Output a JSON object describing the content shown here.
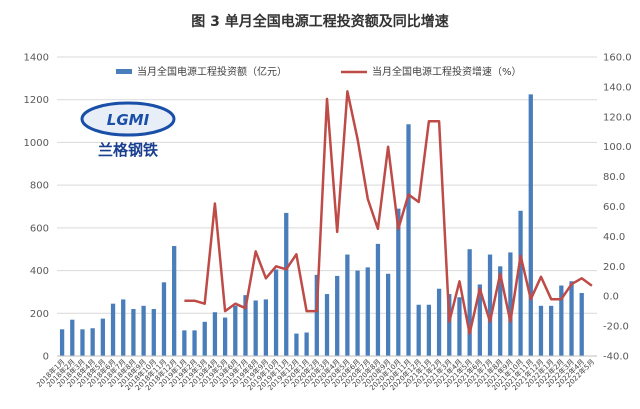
{
  "chart_data": {
    "type": "bar",
    "title": "图 3 单月全国电源工程投资额及同比增速",
    "categories": [
      "2018年1月",
      "2018年2月",
      "2018年3月",
      "2018年4月",
      "2018年5月",
      "2018年6月",
      "2018年7月",
      "2018年8月",
      "2018年9月",
      "2018年10月",
      "2018年11月",
      "2018年12月",
      "2019年1月",
      "2019年2月",
      "2019年3月",
      "2019年4月",
      "2019年5月",
      "2019年6月",
      "2019年7月",
      "2019年8月",
      "2019年9月",
      "2019年10月",
      "2019年11月",
      "2019年12月",
      "2020年1月",
      "2020年2月",
      "2020年3月",
      "2020年4月",
      "2020年5月",
      "2020年6月",
      "2020年7月",
      "2020年8月",
      "2020年9月",
      "2020年10月",
      "2020年11月",
      "2020年12月",
      "2021年1月",
      "2021年2月",
      "2021年3月",
      "2021年4月",
      "2021年5月",
      "2021年6月",
      "2021年7月",
      "2021年8月",
      "2021年9月",
      "2021年10月",
      "2021年11月",
      "2021年12月",
      "2022年1月",
      "2022年2月",
      "2022年3月",
      "2022年4月",
      "2022年5月"
    ],
    "series": [
      {
        "name": "当月全国电源工程投资额（亿元）",
        "type": "bar",
        "axis": "left",
        "color": "#4a7ebb",
        "values": [
          125,
          170,
          125,
          130,
          175,
          245,
          265,
          220,
          235,
          220,
          345,
          515,
          120,
          120,
          160,
          205,
          180,
          235,
          285,
          260,
          265,
          405,
          670,
          105,
          110,
          380,
          290,
          375,
          475,
          400,
          415,
          525,
          385,
          690,
          1085,
          240,
          240,
          315,
          290,
          275,
          500,
          335,
          475,
          420,
          485,
          680,
          1225,
          235,
          235,
          330,
          350,
          295,
          null
        ]
      },
      {
        "name": "当月全国电源工程投资增速（%）",
        "type": "line",
        "axis": "right",
        "color": "#be4b48",
        "values": [
          null,
          null,
          null,
          null,
          null,
          null,
          null,
          null,
          null,
          null,
          null,
          null,
          -3,
          -3,
          -5,
          62,
          -10,
          -5,
          -8,
          30,
          12,
          20,
          18,
          28,
          -10,
          -10,
          132,
          43,
          137,
          105,
          65,
          45,
          100,
          45,
          68,
          63,
          117,
          117,
          -17,
          10,
          -25,
          5,
          -17,
          15,
          -17,
          27,
          -2,
          13,
          -2,
          -2,
          8,
          12,
          7
        ]
      }
    ],
    "y_left": {
      "min": 0,
      "max": 1400,
      "ticks": [
        0,
        200,
        400,
        600,
        800,
        1000,
        1200,
        1400
      ]
    },
    "y_right": {
      "min": -40,
      "max": 160,
      "ticks": [
        "-40.0",
        "-20.0",
        "0.0",
        "20.0",
        "40.0",
        "60.0",
        "80.0",
        "100.0",
        "120.0",
        "140.0",
        "160.0"
      ]
    },
    "legend_position": "top",
    "grid": true
  },
  "watermark": {
    "logo_text": "LGMI",
    "cn_text": "兰格钢铁"
  }
}
